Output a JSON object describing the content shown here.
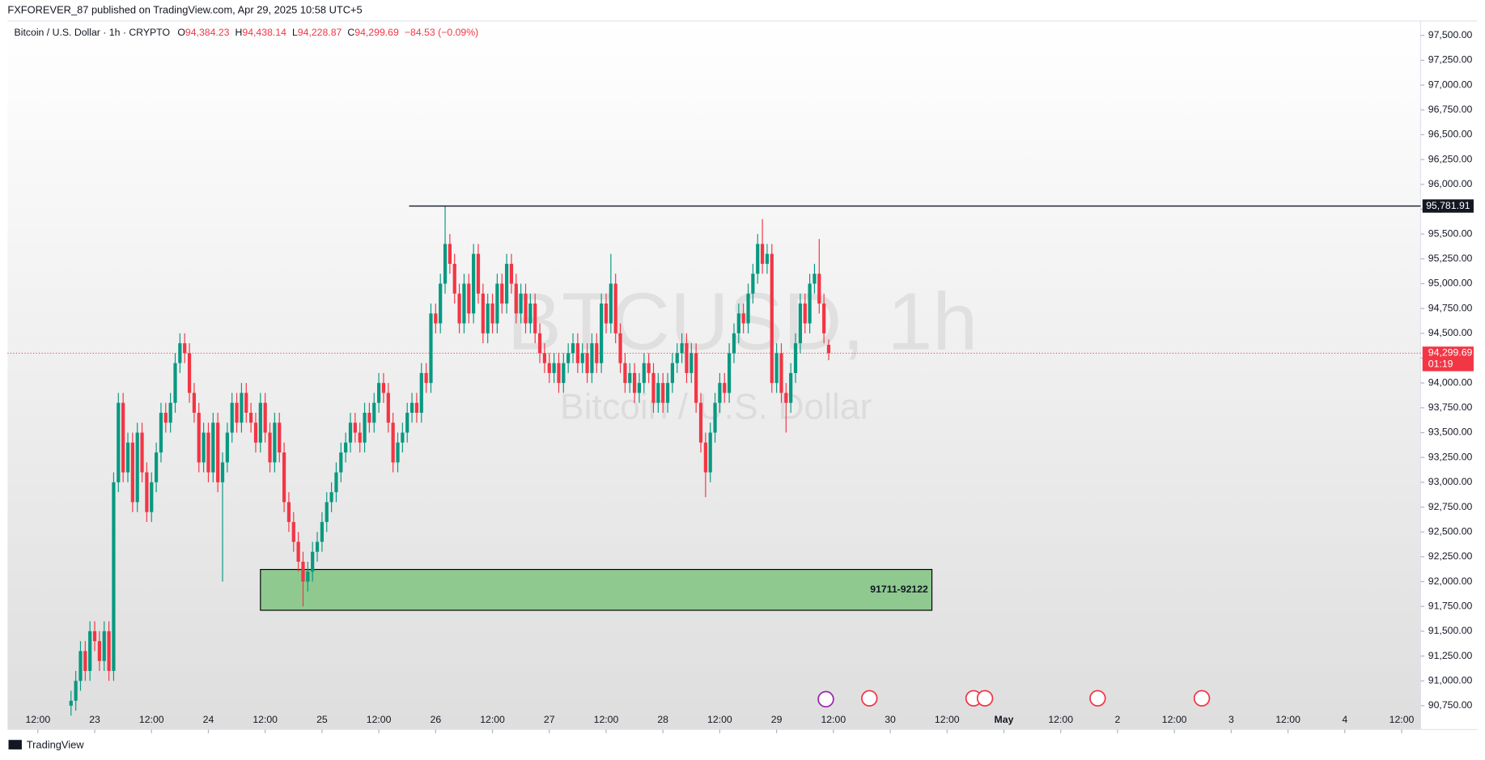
{
  "chart_data": {
    "type": "candlestick",
    "header": "FXFOREVER_87 published on TradingView.com, Apr 29, 2025 10:58 UTC+5",
    "title": "Bitcoin / U.S. Dollar · 1h · CRYPTO",
    "legend": {
      "o": "O",
      "open": {
        "value": 94384.23,
        "label": "94,384.23"
      },
      "h": "H",
      "high": {
        "value": 94438.14,
        "label": "94,438.14"
      },
      "l": "L",
      "low": {
        "value": 94228.87,
        "label": "94,228.87"
      },
      "c": "C",
      "close": {
        "value": 94299.69,
        "label": "94,299.69"
      },
      "change": "−84.53 (−0.09%)"
    },
    "watermark": {
      "symbol": "BTCUSD, 1h",
      "name": "Bitcoin / U.S. Dollar"
    },
    "countdown": "01:19",
    "footer": "TradingView",
    "up_color": "#089981",
    "down_color": "#f23645",
    "resistance": {
      "value": 95781.91,
      "label": "95,781.91",
      "x_start": 78.4
    },
    "zone": {
      "label": "91711-92122",
      "low": 91711,
      "high": 92122,
      "x_start": 47,
      "x_end": 188.8,
      "color": "#8fc98f"
    },
    "xlim": [
      -6.4,
      292
    ],
    "ylim": [
      90720,
      97645
    ],
    "xticks": [
      {
        "value": 0,
        "label": "12:00"
      },
      {
        "value": 12,
        "label": "23"
      },
      {
        "value": 24,
        "label": "12:00"
      },
      {
        "value": 36,
        "label": "24"
      },
      {
        "value": 48,
        "label": "12:00"
      },
      {
        "value": 60,
        "label": "25"
      },
      {
        "value": 72,
        "label": "12:00"
      },
      {
        "value": 84,
        "label": "26"
      },
      {
        "value": 96,
        "label": "12:00"
      },
      {
        "value": 108,
        "label": "27"
      },
      {
        "value": 120,
        "label": "12:00"
      },
      {
        "value": 132,
        "label": "28"
      },
      {
        "value": 144,
        "label": "12:00"
      },
      {
        "value": 156,
        "label": "29"
      },
      {
        "value": 168,
        "label": "12:00"
      },
      {
        "value": 180,
        "label": "30"
      },
      {
        "value": 192,
        "label": "12:00"
      },
      {
        "value": 204,
        "label": "May"
      },
      {
        "value": 216,
        "label": "12:00"
      },
      {
        "value": 228,
        "label": "2"
      },
      {
        "value": 240,
        "label": "12:00"
      },
      {
        "value": 252,
        "label": "3"
      },
      {
        "value": 264,
        "label": "12:00"
      },
      {
        "value": 276,
        "label": "4"
      },
      {
        "value": 288,
        "label": "12:00"
      }
    ],
    "yticks": [
      {
        "value": 90750,
        "label": "90,750.00"
      },
      {
        "value": 91000,
        "label": "91,000.00"
      },
      {
        "value": 91250,
        "label": "91,250.00"
      },
      {
        "value": 91500,
        "label": "91,500.00"
      },
      {
        "value": 91750,
        "label": "91,750.00"
      },
      {
        "value": 92000,
        "label": "92,000.00"
      },
      {
        "value": 92250,
        "label": "92,250.00"
      },
      {
        "value": 92500,
        "label": "92,500.00"
      },
      {
        "value": 92750,
        "label": "92,750.00"
      },
      {
        "value": 93000,
        "label": "93,000.00"
      },
      {
        "value": 93250,
        "label": "93,250.00"
      },
      {
        "value": 93500,
        "label": "93,500.00"
      },
      {
        "value": 93750,
        "label": "93,750.00"
      },
      {
        "value": 94000,
        "label": "94,000.00"
      },
      {
        "value": 94250,
        "label": "94,250.00"
      },
      {
        "value": 94500,
        "label": "94,500.00"
      },
      {
        "value": 94750,
        "label": "94,750.00"
      },
      {
        "value": 95000,
        "label": "95,000.00"
      },
      {
        "value": 95250,
        "label": "95,250.00"
      },
      {
        "value": 95500,
        "label": "95,500.00"
      },
      {
        "value": 95750,
        "label": "95,750.00"
      },
      {
        "value": 96000,
        "label": "96,000.00"
      },
      {
        "value": 96250,
        "label": "96,250.00"
      },
      {
        "value": 96500,
        "label": "96,500.00"
      },
      {
        "value": 96750,
        "label": "96,750.00"
      },
      {
        "value": 97000,
        "label": "97,000.00"
      },
      {
        "value": 97250,
        "label": "97,250.00"
      },
      {
        "value": 97500,
        "label": "97,500.00"
      }
    ],
    "x": [
      7,
      8,
      9,
      10,
      11,
      12,
      13,
      14,
      15,
      16,
      17,
      18,
      19,
      20,
      21,
      22,
      23,
      24,
      25,
      26,
      27,
      28,
      29,
      30,
      31,
      32,
      33,
      34,
      35,
      36,
      37,
      38,
      39,
      40,
      41,
      42,
      43,
      44,
      45,
      46,
      47,
      48,
      49,
      50,
      51,
      52,
      53,
      54,
      55,
      56,
      57,
      58,
      59,
      60,
      61,
      62,
      63,
      64,
      65,
      66,
      67,
      68,
      69,
      70,
      71,
      72,
      73,
      74,
      75,
      76,
      77,
      78,
      79,
      80,
      81,
      82,
      83,
      84,
      85,
      86,
      87,
      88,
      89,
      90,
      91,
      92,
      93,
      94,
      95,
      96,
      97,
      98,
      99,
      100,
      101,
      102,
      103,
      104,
      105,
      106,
      107,
      108,
      109,
      110,
      111,
      112,
      113,
      114,
      115,
      116,
      117,
      118,
      119,
      120,
      121,
      122,
      123,
      124,
      125,
      126,
      127,
      128,
      129,
      130,
      131,
      132,
      133,
      134,
      135,
      136,
      137,
      138,
      139,
      140,
      141,
      142,
      143,
      144,
      145,
      146,
      147,
      148,
      149,
      150,
      151,
      152,
      153,
      154,
      155,
      156,
      157,
      158,
      159,
      160,
      161,
      162,
      163,
      164,
      165,
      166,
      167
    ],
    "open": [
      90750,
      90800,
      91000,
      91300,
      91100,
      91500,
      91400,
      91200,
      91500,
      91100,
      93000,
      93800,
      93100,
      93400,
      92800,
      93500,
      93100,
      92700,
      93000,
      93300,
      93700,
      93600,
      93800,
      94200,
      94400,
      94300,
      93900,
      93700,
      93200,
      93500,
      93100,
      93600,
      93000,
      93200,
      93500,
      93800,
      93600,
      93900,
      93700,
      93600,
      93400,
      93800,
      93500,
      93200,
      93600,
      93300,
      92800,
      92600,
      92400,
      92200,
      92000,
      92100,
      92300,
      92400,
      92600,
      92800,
      92900,
      93100,
      93300,
      93400,
      93600,
      93500,
      93400,
      93700,
      93600,
      93800,
      94000,
      93900,
      93600,
      93200,
      93400,
      93500,
      93700,
      93800,
      93700,
      94100,
      94000,
      94700,
      94600,
      95000,
      95400,
      95200,
      94900,
      94600,
      95000,
      94700,
      95300,
      94900,
      94500,
      94800,
      94600,
      95000,
      94800,
      95200,
      95000,
      94700,
      94900,
      94600,
      94800,
      94500,
      94300,
      94200,
      94100,
      94200,
      94000,
      94200,
      94300,
      94400,
      94200,
      94300,
      94100,
      94400,
      94200,
      94800,
      94600,
      95000,
      94500,
      94200,
      94000,
      94100,
      93900,
      94000,
      94200,
      94100,
      93800,
      94000,
      93800,
      94000,
      94200,
      94300,
      94400,
      94100,
      94300,
      93800,
      93400,
      93100,
      93500,
      93800,
      94000,
      93900,
      94300,
      94500,
      94700,
      94600,
      94900,
      95100,
      95400,
      95200,
      95300,
      94000,
      94300,
      93900,
      93800,
      94100,
      94400,
      94800,
      94600,
      95000,
      95100,
      94800,
      94384.23
    ],
    "high": [
      90900,
      91100,
      91400,
      91400,
      91600,
      91600,
      91500,
      91600,
      91600,
      93100,
      93900,
      93900,
      93500,
      93500,
      93600,
      93600,
      93200,
      93100,
      93400,
      93800,
      93800,
      93900,
      94300,
      94500,
      94500,
      94400,
      94000,
      93800,
      93600,
      93600,
      93700,
      93700,
      93300,
      93600,
      93900,
      93900,
      94000,
      94000,
      93800,
      93700,
      93900,
      93900,
      93600,
      93700,
      93700,
      93400,
      92900,
      92700,
      92500,
      92300,
      92200,
      92400,
      92500,
      92700,
      92900,
      93000,
      93200,
      93400,
      93500,
      93700,
      93700,
      93600,
      93800,
      93800,
      93900,
      94100,
      94100,
      94000,
      93700,
      93500,
      93600,
      93800,
      93900,
      93900,
      94200,
      94200,
      94800,
      94800,
      95100,
      95782,
      95500,
      95300,
      95000,
      95100,
      95100,
      95400,
      95400,
      95000,
      94900,
      94900,
      95100,
      95100,
      95300,
      95300,
      95100,
      95000,
      95000,
      94900,
      94900,
      94600,
      94400,
      94300,
      94300,
      94300,
      94300,
      94400,
      94500,
      94500,
      94400,
      94400,
      94500,
      94500,
      94900,
      94900,
      95300,
      95100,
      94600,
      94300,
      94200,
      94200,
      94100,
      94300,
      94300,
      94200,
      94100,
      94100,
      94100,
      94300,
      94400,
      94500,
      94500,
      94400,
      94400,
      93900,
      93500,
      93600,
      93900,
      94100,
      94100,
      94400,
      94600,
      94800,
      94800,
      95000,
      95200,
      95500,
      95650,
      95400,
      95400,
      94400,
      94400,
      94000,
      94200,
      94500,
      94900,
      94900,
      95100,
      95200,
      95450,
      94900,
      94438.14
    ],
    "low": [
      90650,
      90700,
      90900,
      91000,
      91000,
      91300,
      91100,
      91100,
      91000,
      91000,
      92900,
      93000,
      93000,
      92700,
      92700,
      93000,
      92600,
      92600,
      92900,
      93200,
      93500,
      93500,
      93700,
      94100,
      94200,
      93800,
      93600,
      93100,
      93100,
      93000,
      93000,
      92900,
      92000,
      93100,
      93400,
      93500,
      93500,
      93600,
      93500,
      93300,
      93300,
      93400,
      93100,
      93100,
      93200,
      92700,
      92500,
      92300,
      92100,
      91750,
      91900,
      92000,
      92200,
      92300,
      92500,
      92700,
      92800,
      93000,
      93200,
      93300,
      93400,
      93300,
      93300,
      93500,
      93500,
      93700,
      93800,
      93500,
      93100,
      93100,
      93300,
      93400,
      93600,
      93600,
      93600,
      93900,
      93900,
      94500,
      94500,
      94900,
      95100,
      94800,
      94500,
      94500,
      94600,
      94600,
      94800,
      94400,
      94400,
      94500,
      94500,
      94700,
      94700,
      94900,
      94600,
      94600,
      94500,
      94500,
      94400,
      94200,
      94100,
      94000,
      94000,
      93900,
      93900,
      94100,
      94200,
      94100,
      94100,
      94000,
      94000,
      94100,
      94100,
      94500,
      94500,
      94400,
      94100,
      93900,
      93900,
      93800,
      93800,
      93900,
      94000,
      93700,
      93700,
      93700,
      93700,
      93900,
      94100,
      94200,
      94000,
      94000,
      93700,
      93300,
      92850,
      93000,
      93400,
      93700,
      93800,
      93800,
      94200,
      94400,
      94500,
      94500,
      94800,
      95000,
      95100,
      95100,
      93900,
      93900,
      93800,
      93500,
      93700,
      94000,
      94300,
      94500,
      94500,
      94900,
      94700,
      94400,
      94228.87
    ],
    "close": [
      90800,
      91000,
      91300,
      91100,
      91500,
      91400,
      91200,
      91500,
      91100,
      93000,
      93800,
      93100,
      93400,
      92800,
      93500,
      93100,
      92700,
      93000,
      93300,
      93700,
      93600,
      93800,
      94200,
      94400,
      94300,
      93900,
      93700,
      93200,
      93500,
      93100,
      93600,
      93000,
      93200,
      93500,
      93800,
      93600,
      93900,
      93700,
      93600,
      93400,
      93800,
      93500,
      93200,
      93600,
      93300,
      92800,
      92600,
      92400,
      92200,
      92000,
      92100,
      92300,
      92400,
      92600,
      92800,
      92900,
      93100,
      93300,
      93400,
      93600,
      93500,
      93400,
      93700,
      93600,
      93800,
      94000,
      93900,
      93600,
      93200,
      93400,
      93500,
      93700,
      93800,
      93700,
      94100,
      94000,
      94700,
      94600,
      95000,
      95400,
      95200,
      94900,
      94600,
      95000,
      94700,
      95300,
      94900,
      94500,
      94800,
      94600,
      95000,
      94800,
      95200,
      95000,
      94700,
      94900,
      94600,
      94800,
      94500,
      94300,
      94200,
      94100,
      94200,
      94000,
      94200,
      94300,
      94400,
      94200,
      94300,
      94100,
      94400,
      94200,
      94800,
      94600,
      95000,
      94500,
      94200,
      94000,
      94100,
      93900,
      94000,
      94200,
      94100,
      93800,
      94000,
      93800,
      94000,
      94200,
      94300,
      94400,
      94100,
      94300,
      93800,
      93400,
      93100,
      93500,
      93800,
      94000,
      93900,
      94300,
      94500,
      94700,
      94600,
      94900,
      95100,
      95400,
      95200,
      95300,
      94000,
      94300,
      93900,
      93800,
      94100,
      94400,
      94800,
      94600,
      95000,
      95100,
      94800,
      94500,
      94299.69
    ]
  }
}
